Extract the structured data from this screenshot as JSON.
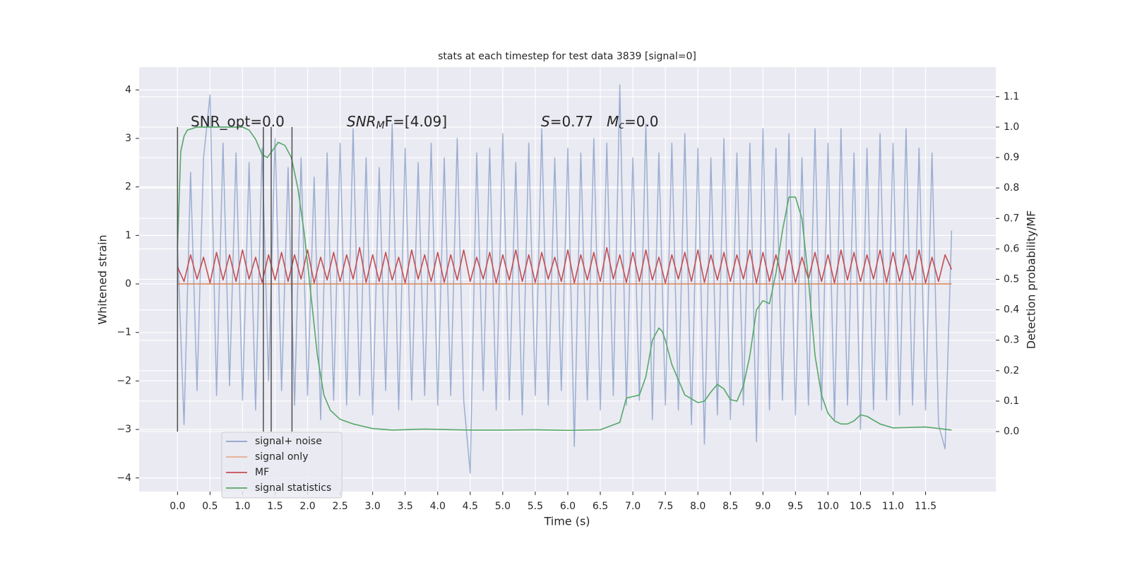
{
  "chart_data": {
    "type": "line",
    "title": "stats at each timestep for test data 3839 [signal=0]",
    "xlabel": "Time (s)",
    "ylabel": "Whitened strain",
    "y2label": "Detection probability/MF",
    "xlim": [
      -0.59,
      12.58
    ],
    "ylim": [
      -4.28,
      4.47
    ],
    "y2lim": [
      -0.197,
      1.197
    ],
    "grid": true,
    "xticks": [
      {
        "value": 0,
        "label": "0.0"
      },
      0.5,
      {
        "value": 1,
        "label": "1.0"
      },
      1.5,
      {
        "value": 2,
        "label": "2.0"
      },
      2.5,
      {
        "value": 3,
        "label": "3.0"
      },
      3.5,
      {
        "value": 4,
        "label": "4.0"
      },
      4.5,
      {
        "value": 5,
        "label": "5.0"
      },
      5.5,
      {
        "value": 6,
        "label": "6.0"
      },
      6.5,
      {
        "value": 7,
        "label": "7.0"
      },
      7.5,
      {
        "value": 8,
        "label": "8.0"
      },
      8.5,
      {
        "value": 9,
        "label": "9.0"
      },
      9.5,
      {
        "value": 10,
        "label": "10.0"
      },
      10.5,
      {
        "value": 11,
        "label": "11.0"
      },
      11.5
    ],
    "yticks": [
      {
        "value": -4,
        "label": "−4"
      },
      {
        "value": -3,
        "label": "−3"
      },
      {
        "value": -2,
        "label": "−2"
      },
      {
        "value": -1,
        "label": "−1"
      },
      0,
      1,
      2,
      3,
      4
    ],
    "y2ticks": [
      {
        "value": 0,
        "label": "0.0"
      },
      0.1,
      0.2,
      0.3,
      0.4,
      0.5,
      0.6,
      0.7,
      0.8,
      0.9,
      {
        "value": 1,
        "label": "1.0"
      },
      1.1
    ],
    "annotations": [
      {
        "parts": [
          "SNR_opt=0.0"
        ]
      },
      {
        "parts": [
          "SNR",
          "M",
          "F=[4.09]"
        ]
      },
      {
        "parts": [
          "S",
          "=0.77"
        ]
      },
      {
        "parts": [
          "M",
          "c",
          "=0.0"
        ]
      }
    ],
    "vlines": [
      0,
      1.32,
      1.44,
      1.76
    ],
    "vline_range": [
      0,
      1
    ],
    "vline_color": "#4d4d4d",
    "x": [
      0,
      0.1,
      0.2,
      0.3,
      0.4,
      0.5,
      0.6,
      0.7,
      0.8,
      0.9,
      1,
      1.1,
      1.2,
      1.3,
      1.4,
      1.5,
      1.6,
      1.7,
      1.8,
      1.9,
      2,
      2.1,
      2.2,
      2.3,
      2.4,
      2.5,
      2.6,
      2.7,
      2.8,
      2.9,
      3,
      3.1,
      3.2,
      3.3,
      3.4,
      3.5,
      3.6,
      3.7,
      3.8,
      3.9,
      4,
      4.1,
      4.2,
      4.3,
      4.4,
      4.5,
      4.6,
      4.7,
      4.8,
      4.9,
      5,
      5.1,
      5.2,
      5.3,
      5.4,
      5.5,
      5.6,
      5.7,
      5.8,
      5.9,
      6,
      6.1,
      6.2,
      6.3,
      6.4,
      6.5,
      6.6,
      6.7,
      6.8,
      6.9,
      7,
      7.1,
      7.2,
      7.3,
      7.4,
      7.5,
      7.6,
      7.7,
      7.8,
      7.9,
      8,
      8.1,
      8.2,
      8.3,
      8.4,
      8.5,
      8.6,
      8.7,
      8.8,
      8.9,
      9,
      9.1,
      9.2,
      9.3,
      9.4,
      9.5,
      9.6,
      9.7,
      9.8,
      9.9,
      10,
      10.1,
      10.2,
      10.3,
      10.4,
      10.5,
      10.6,
      10.7,
      10.8,
      10.9,
      11,
      11.1,
      11.2,
      11.3,
      11.4,
      11.5,
      11.6,
      11.7,
      11.8,
      11.9
    ],
    "series": [
      {
        "name": "signal+ noise",
        "color": "#4c72b0",
        "values": [
          0.8,
          -2.9,
          2.3,
          -2.2,
          2.6,
          3.9,
          -2.3,
          2.9,
          -2.1,
          2.7,
          -2.4,
          2.5,
          -2.6,
          2.8,
          -2.0,
          3.0,
          -2.2,
          2.4,
          -2.5,
          2.6,
          -2.3,
          2.2,
          -2.8,
          2.7,
          -2.4,
          2.9,
          -2.5,
          3.2,
          -2.3,
          2.6,
          -2.7,
          2.4,
          -2.2,
          3.3,
          -2.6,
          2.8,
          -2.4,
          2.5,
          -2.3,
          2.9,
          -2.5,
          2.6,
          -2.3,
          3.0,
          -2.4,
          -3.9,
          2.7,
          -2.2,
          2.8,
          -2.6,
          3.1,
          -2.4,
          2.5,
          -2.7,
          2.9,
          -2.3,
          3.2,
          -2.5,
          2.6,
          -2.2,
          2.8,
          -3.35,
          2.7,
          -2.4,
          3.0,
          -2.6,
          2.9,
          -2.3,
          4.1,
          -2.5,
          2.6,
          -2.4,
          3.3,
          -2.8,
          2.7,
          -2.5,
          2.9,
          -2.6,
          3.1,
          -2.9,
          2.8,
          -3.3,
          2.6,
          -2.7,
          3.0,
          -2.8,
          2.7,
          -2.5,
          2.9,
          -3.25,
          3.2,
          -2.6,
          2.8,
          -2.4,
          3.1,
          -2.7,
          2.6,
          -2.5,
          3.2,
          -2.6,
          2.9,
          -2.8,
          3.2,
          -2.5,
          2.7,
          -3.0,
          2.8,
          -2.6,
          3.1,
          -2.4,
          2.9,
          -2.7,
          3.2,
          -2.5,
          2.8,
          -2.6,
          2.7,
          -2.9,
          -3.4,
          1.1
        ]
      },
      {
        "name": "signal only",
        "color": "#dd8452",
        "values": [
          0,
          0,
          0,
          0,
          0,
          0,
          0,
          0,
          0,
          0,
          0,
          0,
          0,
          0,
          0,
          0,
          0,
          0,
          0,
          0,
          0,
          0,
          0,
          0,
          0,
          0,
          0,
          0,
          0,
          0,
          0,
          0,
          0,
          0,
          0,
          0,
          0,
          0,
          0,
          0,
          0,
          0,
          0,
          0,
          0,
          0,
          0,
          0,
          0,
          0,
          0,
          0,
          0,
          0,
          0,
          0,
          0,
          0,
          0,
          0,
          0,
          0,
          0,
          0,
          0,
          0,
          0,
          0,
          0,
          0,
          0,
          0,
          0,
          0,
          0,
          0,
          0,
          0,
          0,
          0,
          0,
          0,
          0,
          0,
          0,
          0,
          0,
          0,
          0,
          0,
          0,
          0,
          0,
          0,
          0,
          0,
          0,
          0,
          0,
          0,
          0,
          0,
          0,
          0,
          0,
          0,
          0,
          0,
          0,
          0,
          0,
          0,
          0,
          0,
          0,
          0,
          0,
          0,
          0,
          0
        ]
      },
      {
        "name": "MF",
        "color": "#c44e52",
        "values": [
          0.35,
          0.05,
          0.6,
          0.1,
          0.55,
          0.02,
          0.65,
          0.08,
          0.6,
          0.05,
          0.7,
          0.1,
          0.55,
          0.03,
          0.6,
          0.08,
          0.65,
          0.05,
          0.6,
          0.1,
          0.7,
          0.02,
          0.55,
          0.08,
          0.65,
          0.05,
          0.6,
          0.1,
          0.75,
          0.03,
          0.6,
          0.05,
          0.65,
          0.08,
          0.55,
          0.02,
          0.7,
          0.1,
          0.6,
          0.05,
          0.65,
          0.03,
          0.6,
          0.08,
          0.7,
          0.05,
          0.55,
          0.1,
          0.65,
          0.02,
          0.6,
          0.08,
          0.7,
          0.05,
          0.6,
          0.03,
          0.65,
          0.1,
          0.55,
          0.05,
          0.7,
          0.02,
          0.6,
          0.08,
          0.65,
          0.05,
          0.75,
          0.1,
          0.6,
          0.03,
          0.65,
          0.05,
          0.7,
          0.08,
          0.55,
          0.02,
          0.6,
          0.1,
          0.65,
          0.05,
          0.7,
          0.03,
          0.6,
          0.08,
          0.65,
          0.05,
          0.6,
          0.1,
          0.7,
          0.02,
          0.65,
          0.05,
          0.6,
          0.08,
          0.7,
          0.03,
          0.55,
          0.1,
          0.65,
          0.05,
          0.6,
          0.02,
          0.7,
          0.08,
          0.65,
          0.05,
          0.6,
          0.1,
          0.7,
          0.03,
          0.65,
          0.05,
          0.6,
          0.08,
          0.7,
          0.02,
          0.55,
          0.05,
          0.6,
          0.3
        ]
      },
      {
        "name": "signal statistics",
        "color": "#55a868",
        "axis": "y2",
        "x": [
          0,
          0.05,
          0.1,
          0.15,
          0.3,
          0.5,
          0.8,
          1.0,
          1.1,
          1.2,
          1.3,
          1.38,
          1.45,
          1.55,
          1.65,
          1.75,
          1.85,
          1.95,
          2.05,
          2.15,
          2.25,
          2.35,
          2.5,
          2.7,
          3.0,
          3.3,
          3.8,
          4.5,
          5.0,
          5.5,
          6.0,
          6.5,
          6.8,
          6.9,
          7.0,
          7.1,
          7.2,
          7.3,
          7.4,
          7.45,
          7.5,
          7.6,
          7.8,
          8.0,
          8.1,
          8.2,
          8.3,
          8.4,
          8.5,
          8.6,
          8.7,
          8.8,
          8.9,
          9.0,
          9.1,
          9.2,
          9.3,
          9.4,
          9.5,
          9.6,
          9.7,
          9.8,
          9.9,
          10.0,
          10.1,
          10.2,
          10.3,
          10.4,
          10.5,
          10.6,
          10.8,
          11.0,
          11.5,
          11.9
        ],
        "values": [
          0.6,
          0.92,
          0.97,
          0.99,
          1.0,
          1.0,
          1.0,
          1.0,
          0.99,
          0.96,
          0.91,
          0.9,
          0.92,
          0.95,
          0.94,
          0.9,
          0.8,
          0.65,
          0.45,
          0.25,
          0.12,
          0.07,
          0.04,
          0.025,
          0.01,
          0.005,
          0.008,
          0.005,
          0.005,
          0.006,
          0.004,
          0.006,
          0.03,
          0.11,
          0.115,
          0.12,
          0.18,
          0.3,
          0.34,
          0.33,
          0.3,
          0.22,
          0.12,
          0.095,
          0.1,
          0.13,
          0.155,
          0.14,
          0.105,
          0.1,
          0.15,
          0.25,
          0.4,
          0.43,
          0.42,
          0.52,
          0.66,
          0.77,
          0.77,
          0.7,
          0.5,
          0.25,
          0.12,
          0.06,
          0.035,
          0.025,
          0.025,
          0.035,
          0.055,
          0.05,
          0.025,
          0.012,
          0.015,
          0.005
        ]
      }
    ]
  }
}
